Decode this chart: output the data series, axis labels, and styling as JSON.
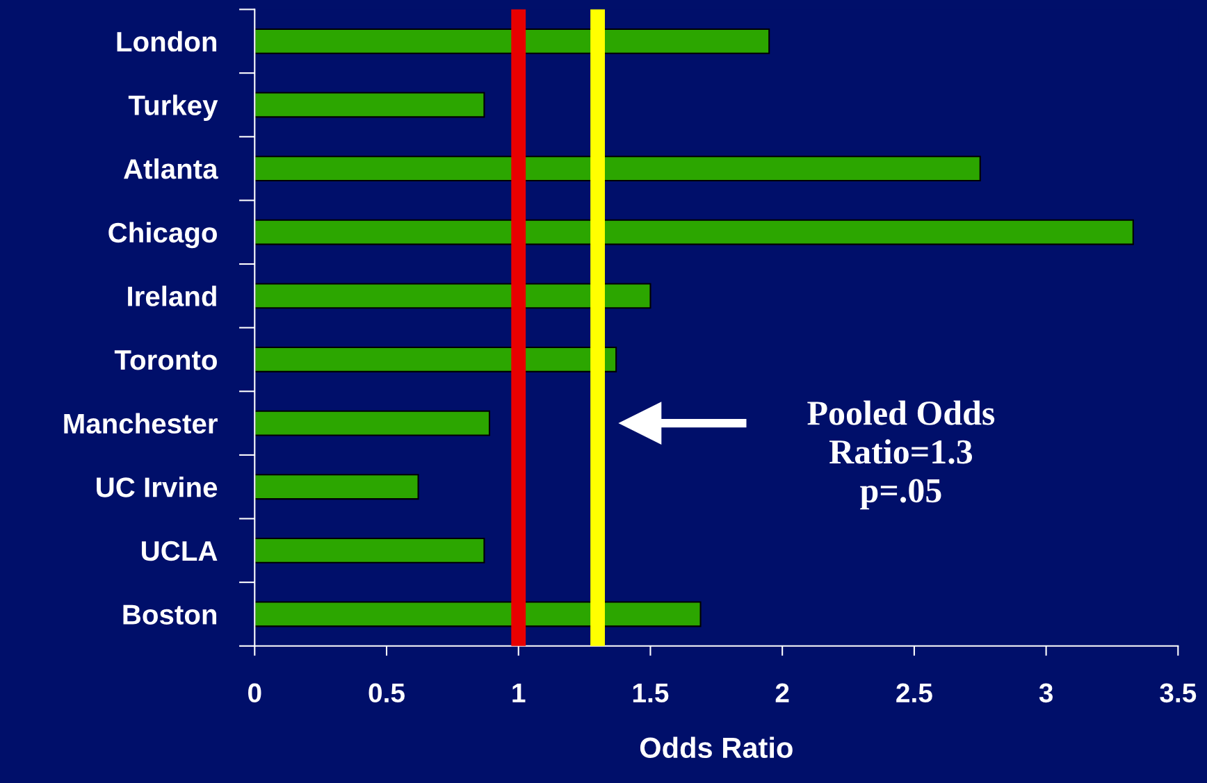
{
  "chart_data": {
    "type": "bar",
    "orientation": "horizontal",
    "xlabel": "Odds Ratio",
    "categories": [
      "London",
      "Turkey",
      "Atlanta",
      "Chicago",
      "Ireland",
      "Toronto",
      "Manchester",
      "UC Irvine",
      "UCLA",
      "Boston"
    ],
    "values": [
      1.95,
      0.87,
      2.75,
      3.33,
      1.5,
      1.37,
      0.89,
      0.62,
      0.87,
      1.69
    ],
    "color": "#2ca600",
    "xlim": [
      0,
      3.5
    ],
    "xticks": [
      0,
      0.5,
      1,
      1.5,
      2,
      2.5,
      3,
      3.5
    ],
    "grid": false,
    "ref_lines": [
      {
        "axis": "x",
        "value": 1,
        "color": "#e80000"
      },
      {
        "axis": "x",
        "value": 1.3,
        "color": "#ffff00"
      }
    ],
    "annotations": [
      "Pooled Odds\nRatio=1.3\np=.05"
    ]
  }
}
